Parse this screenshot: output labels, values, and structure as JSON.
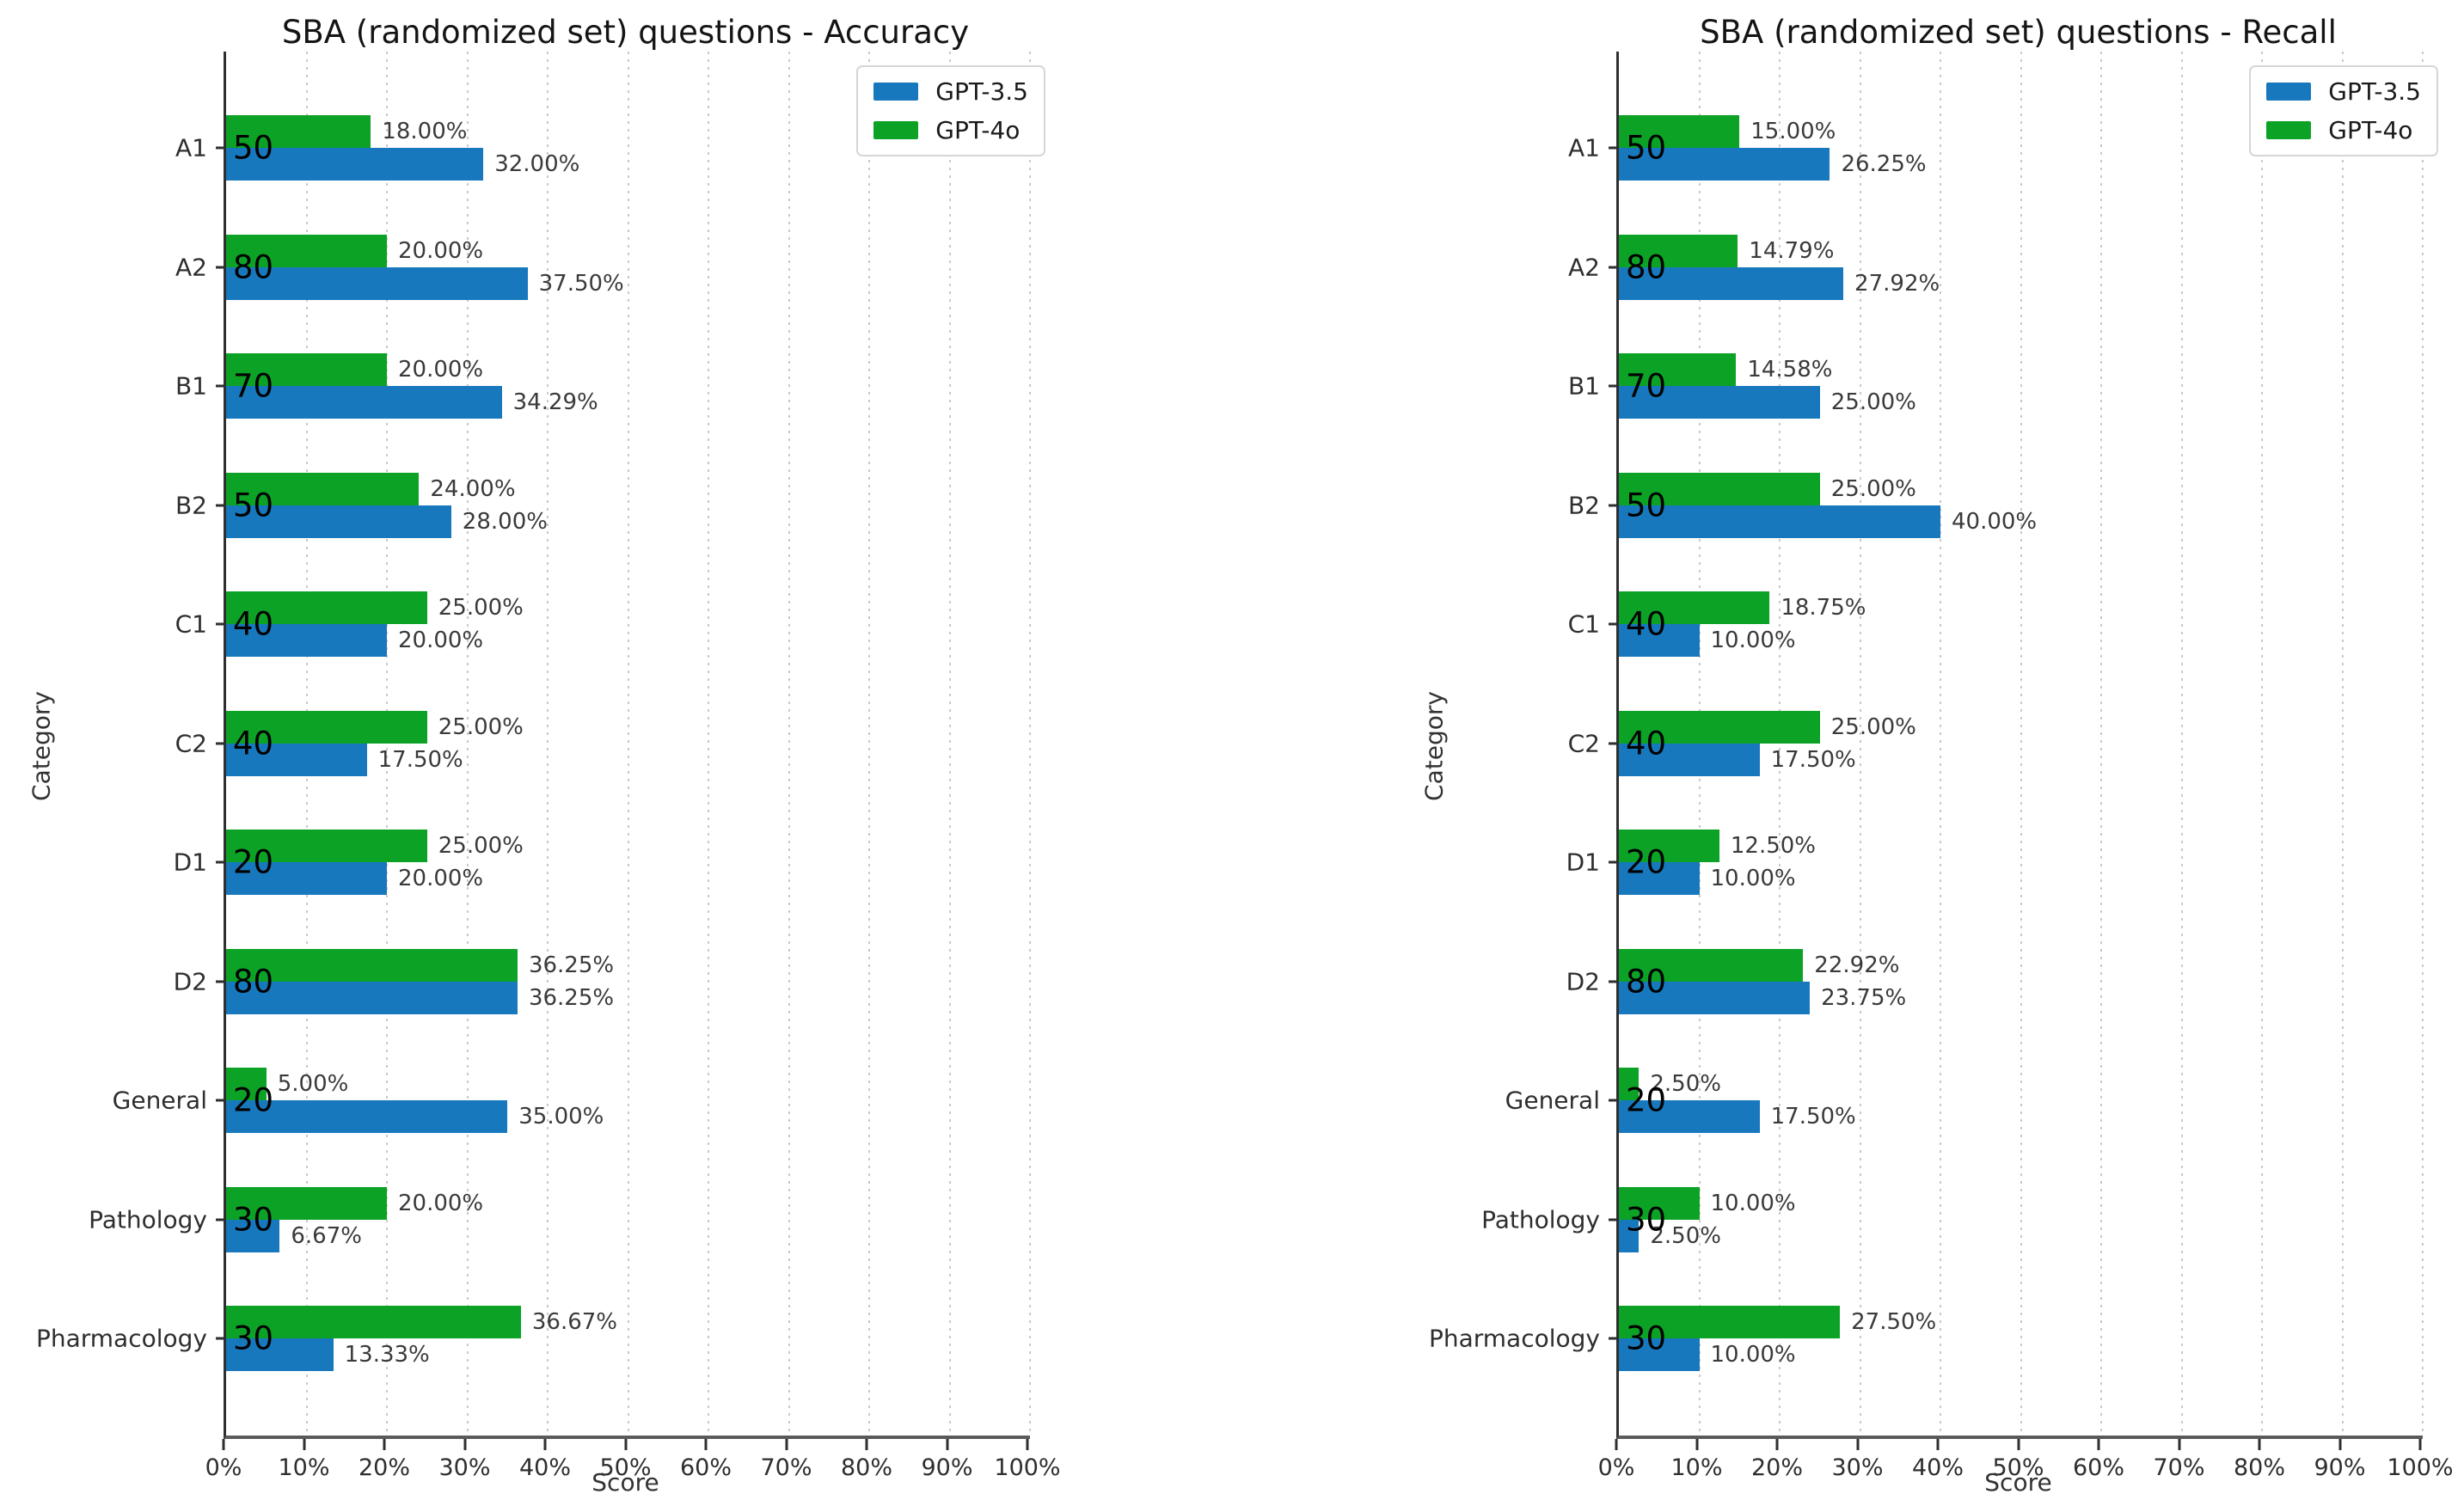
{
  "colors": {
    "gpt35": "#1878bd",
    "gpt4o": "#0ca226",
    "grid": "#c9c9c9",
    "axis": "#2f2f2f",
    "value_label": "#3a3a3a",
    "count_label": "#000000"
  },
  "chart_data": [
    {
      "type": "bar",
      "orientation": "horizontal",
      "title": "SBA (randomized set) questions - Accuracy",
      "xlabel": "Score",
      "ylabel": "Category",
      "xlim": [
        0,
        100
      ],
      "x_tick_labels": [
        "0%",
        "10%",
        "20%",
        "30%",
        "40%",
        "50%",
        "60%",
        "70%",
        "80%",
        "90%",
        "100%"
      ],
      "grid": "vertical dotted",
      "legend_position": "upper right",
      "legend": [
        "GPT-3.5",
        "GPT-4o"
      ],
      "categories": [
        "A1",
        "A2",
        "B1",
        "B2",
        "C1",
        "C2",
        "D1",
        "D2",
        "General",
        "Pathology",
        "Pharmacology"
      ],
      "bar_counts": [
        50,
        80,
        70,
        50,
        40,
        40,
        20,
        80,
        20,
        30,
        30
      ],
      "series": [
        {
          "name": "GPT-3.5",
          "color": "#1878bd",
          "values": [
            32.0,
            37.5,
            34.29,
            28.0,
            20.0,
            17.5,
            20.0,
            36.25,
            35.0,
            6.67,
            13.33
          ],
          "labels": [
            "32.00%",
            "37.50%",
            "34.29%",
            "28.00%",
            "20.00%",
            "17.50%",
            "20.00%",
            "36.25%",
            "35.00%",
            "6.67%",
            "13.33%"
          ]
        },
        {
          "name": "GPT-4o",
          "color": "#0ca226",
          "values": [
            18.0,
            20.0,
            20.0,
            24.0,
            25.0,
            25.0,
            25.0,
            36.25,
            5.0,
            20.0,
            36.67
          ],
          "labels": [
            "18.00%",
            "20.00%",
            "20.00%",
            "24.00%",
            "25.00%",
            "25.00%",
            "25.00%",
            "36.25%",
            "5.00%",
            "20.00%",
            "36.67%"
          ]
        }
      ]
    },
    {
      "type": "bar",
      "orientation": "horizontal",
      "title": "SBA (randomized set) questions - Recall",
      "xlabel": "Score",
      "ylabel": "Category",
      "xlim": [
        0,
        100
      ],
      "x_tick_labels": [
        "0%",
        "10%",
        "20%",
        "30%",
        "40%",
        "50%",
        "60%",
        "70%",
        "80%",
        "90%",
        "100%"
      ],
      "grid": "vertical dotted",
      "legend_position": "upper right",
      "legend": [
        "GPT-3.5",
        "GPT-4o"
      ],
      "categories": [
        "A1",
        "A2",
        "B1",
        "B2",
        "C1",
        "C2",
        "D1",
        "D2",
        "General",
        "Pathology",
        "Pharmacology"
      ],
      "bar_counts": [
        50,
        80,
        70,
        50,
        40,
        40,
        20,
        80,
        20,
        30,
        30
      ],
      "series": [
        {
          "name": "GPT-3.5",
          "color": "#1878bd",
          "values": [
            26.25,
            27.92,
            25.0,
            40.0,
            10.0,
            17.5,
            10.0,
            23.75,
            17.5,
            2.5,
            10.0
          ],
          "labels": [
            "26.25%",
            "27.92%",
            "25.00%",
            "40.00%",
            "10.00%",
            "17.50%",
            "10.00%",
            "23.75%",
            "17.50%",
            "2.50%",
            "10.00%"
          ]
        },
        {
          "name": "GPT-4o",
          "color": "#0ca226",
          "values": [
            15.0,
            14.79,
            14.58,
            25.0,
            18.75,
            25.0,
            12.5,
            22.92,
            2.5,
            10.0,
            27.5
          ],
          "labels": [
            "15.00%",
            "14.79%",
            "14.58%",
            "25.00%",
            "18.75%",
            "25.00%",
            "12.50%",
            "22.92%",
            "2.50%",
            "10.00%",
            "27.50%"
          ]
        }
      ]
    }
  ]
}
